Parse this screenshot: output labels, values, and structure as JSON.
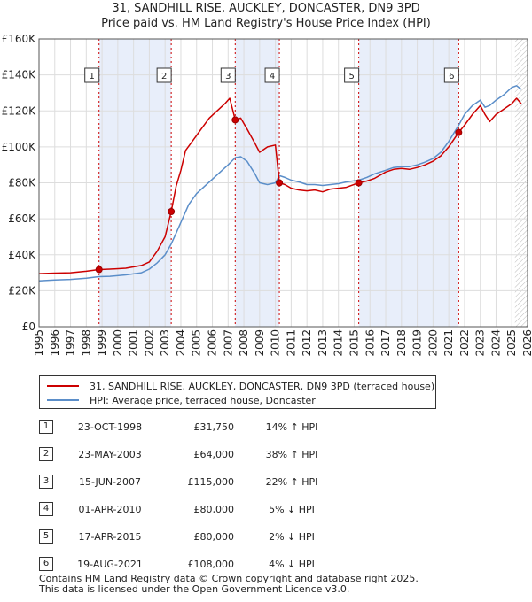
{
  "title_line1": "31, SANDHILL RISE, AUCKLEY, DONCASTER, DN9 3PD",
  "title_line2": "Price paid vs. HM Land Registry's House Price Index (HPI)",
  "chart_data": {
    "type": "line",
    "xlim": [
      1995,
      2026
    ],
    "ylim": [
      0,
      160000
    ],
    "y_ticks": [
      0,
      20000,
      40000,
      60000,
      80000,
      100000,
      120000,
      140000,
      160000
    ],
    "y_tick_labels": [
      "£0",
      "£20K",
      "£40K",
      "£60K",
      "£80K",
      "£100K",
      "£120K",
      "£140K",
      "£160K"
    ],
    "x_ticks": [
      1995,
      1996,
      1997,
      1998,
      1999,
      2000,
      2001,
      2002,
      2003,
      2004,
      2005,
      2006,
      2007,
      2008,
      2009,
      2010,
      2011,
      2012,
      2013,
      2014,
      2015,
      2016,
      2017,
      2018,
      2019,
      2020,
      2021,
      2022,
      2023,
      2024,
      2025,
      2026
    ],
    "series": [
      {
        "name": "31, SANDHILL RISE, AUCKLEY, DONCASTER, DN9 3PD (terraced house)",
        "color": "#cc0000",
        "points": [
          [
            1995.0,
            29500
          ],
          [
            1996.0,
            29800
          ],
          [
            1997.0,
            30000
          ],
          [
            1998.0,
            30800
          ],
          [
            1998.8,
            31750
          ],
          [
            1999.5,
            32000
          ],
          [
            2000.5,
            32500
          ],
          [
            2001.5,
            34000
          ],
          [
            2002.0,
            36000
          ],
          [
            2002.5,
            42000
          ],
          [
            2003.0,
            50000
          ],
          [
            2003.39,
            64000
          ],
          [
            2003.7,
            78000
          ],
          [
            2004.0,
            87000
          ],
          [
            2004.3,
            98000
          ],
          [
            2004.8,
            104000
          ],
          [
            2005.3,
            110000
          ],
          [
            2005.8,
            116000
          ],
          [
            2006.3,
            120000
          ],
          [
            2006.8,
            124000
          ],
          [
            2007.1,
            127000
          ],
          [
            2007.45,
            115000
          ],
          [
            2007.8,
            116000
          ],
          [
            2008.2,
            110000
          ],
          [
            2008.7,
            102000
          ],
          [
            2009.0,
            97000
          ],
          [
            2009.5,
            100000
          ],
          [
            2010.0,
            101000
          ],
          [
            2010.25,
            80000
          ],
          [
            2010.6,
            79000
          ],
          [
            2011.0,
            77000
          ],
          [
            2011.5,
            76000
          ],
          [
            2012.0,
            75500
          ],
          [
            2012.5,
            76000
          ],
          [
            2013.0,
            75000
          ],
          [
            2013.5,
            76500
          ],
          [
            2014.0,
            77000
          ],
          [
            2014.5,
            77500
          ],
          [
            2015.29,
            80000
          ],
          [
            2015.8,
            81000
          ],
          [
            2016.3,
            82500
          ],
          [
            2017.0,
            86000
          ],
          [
            2017.5,
            87500
          ],
          [
            2018.0,
            88000
          ],
          [
            2018.5,
            87500
          ],
          [
            2019.0,
            88500
          ],
          [
            2019.5,
            90000
          ],
          [
            2020.0,
            92000
          ],
          [
            2020.5,
            95000
          ],
          [
            2021.0,
            100000
          ],
          [
            2021.63,
            108000
          ],
          [
            2022.0,
            112000
          ],
          [
            2022.5,
            118000
          ],
          [
            2023.0,
            123000
          ],
          [
            2023.3,
            118000
          ],
          [
            2023.6,
            114000
          ],
          [
            2024.0,
            118000
          ],
          [
            2024.5,
            121000
          ],
          [
            2025.0,
            124000
          ],
          [
            2025.3,
            127000
          ],
          [
            2025.6,
            124000
          ]
        ]
      },
      {
        "name": "HPI: Average price, terraced house, Doncaster",
        "color": "#5b8ec9",
        "points": [
          [
            1995.0,
            25500
          ],
          [
            1996.0,
            26000
          ],
          [
            1997.0,
            26300
          ],
          [
            1998.0,
            27000
          ],
          [
            1998.8,
            27800
          ],
          [
            1999.5,
            28000
          ],
          [
            2000.5,
            28800
          ],
          [
            2001.5,
            30000
          ],
          [
            2002.0,
            32000
          ],
          [
            2002.5,
            35500
          ],
          [
            2003.0,
            40000
          ],
          [
            2003.39,
            46000
          ],
          [
            2003.7,
            52000
          ],
          [
            2004.0,
            58000
          ],
          [
            2004.5,
            68000
          ],
          [
            2005.0,
            74000
          ],
          [
            2005.5,
            78000
          ],
          [
            2006.0,
            82000
          ],
          [
            2006.5,
            86000
          ],
          [
            2007.0,
            90000
          ],
          [
            2007.45,
            94000
          ],
          [
            2007.8,
            94500
          ],
          [
            2008.2,
            92000
          ],
          [
            2008.7,
            85000
          ],
          [
            2009.0,
            80000
          ],
          [
            2009.5,
            79000
          ],
          [
            2010.0,
            80000
          ],
          [
            2010.25,
            84000
          ],
          [
            2010.6,
            83000
          ],
          [
            2011.0,
            81500
          ],
          [
            2011.5,
            80500
          ],
          [
            2012.0,
            79000
          ],
          [
            2012.5,
            79000
          ],
          [
            2013.0,
            78500
          ],
          [
            2013.5,
            79000
          ],
          [
            2014.0,
            79500
          ],
          [
            2014.5,
            80500
          ],
          [
            2015.29,
            81500
          ],
          [
            2015.8,
            83000
          ],
          [
            2016.3,
            85000
          ],
          [
            2017.0,
            87000
          ],
          [
            2017.5,
            88500
          ],
          [
            2018.0,
            89000
          ],
          [
            2018.5,
            89000
          ],
          [
            2019.0,
            90000
          ],
          [
            2019.5,
            91500
          ],
          [
            2020.0,
            93500
          ],
          [
            2020.5,
            97000
          ],
          [
            2021.0,
            103000
          ],
          [
            2021.63,
            112000
          ],
          [
            2022.0,
            118000
          ],
          [
            2022.5,
            123000
          ],
          [
            2023.0,
            126000
          ],
          [
            2023.3,
            122000
          ],
          [
            2023.6,
            123000
          ],
          [
            2024.0,
            126000
          ],
          [
            2024.5,
            129000
          ],
          [
            2025.0,
            133000
          ],
          [
            2025.3,
            134000
          ],
          [
            2025.6,
            132000
          ]
        ]
      }
    ],
    "transactions": [
      {
        "num": "1",
        "x": 1998.81,
        "y": 31750
      },
      {
        "num": "2",
        "x": 2003.39,
        "y": 64000
      },
      {
        "num": "3",
        "x": 2007.45,
        "y": 115000
      },
      {
        "num": "4",
        "x": 2010.25,
        "y": 80000
      },
      {
        "num": "5",
        "x": 2015.29,
        "y": 80000
      },
      {
        "num": "6",
        "x": 2021.63,
        "y": 108000
      }
    ],
    "shaded_periods": [
      [
        1998.81,
        2003.39
      ],
      [
        2007.45,
        2010.25
      ],
      [
        2015.29,
        2021.63
      ]
    ],
    "future_hatch_from": 2025.2
  },
  "legend": {
    "series1": "31, SANDHILL RISE, AUCKLEY, DONCASTER, DN9 3PD (terraced house)",
    "series2": "HPI: Average price, terraced house, Doncaster",
    "series1_color": "#cc0000",
    "series2_color": "#5b8ec9"
  },
  "transactions_table": [
    {
      "num": "1",
      "date": "23-OCT-1998",
      "price": "£31,750",
      "pct": "14% ↑ HPI"
    },
    {
      "num": "2",
      "date": "23-MAY-2003",
      "price": "£64,000",
      "pct": "38% ↑ HPI"
    },
    {
      "num": "3",
      "date": "15-JUN-2007",
      "price": "£115,000",
      "pct": "22% ↑ HPI"
    },
    {
      "num": "4",
      "date": "01-APR-2010",
      "price": "£80,000",
      "pct": "5% ↓ HPI"
    },
    {
      "num": "5",
      "date": "17-APR-2015",
      "price": "£80,000",
      "pct": "2% ↓ HPI"
    },
    {
      "num": "6",
      "date": "19-AUG-2021",
      "price": "£108,000",
      "pct": "4% ↓ HPI"
    }
  ],
  "footer": {
    "line1": "Contains HM Land Registry data © Crown copyright and database right 2025.",
    "line2": "This data is licensed under the Open Government Licence v3.0."
  }
}
